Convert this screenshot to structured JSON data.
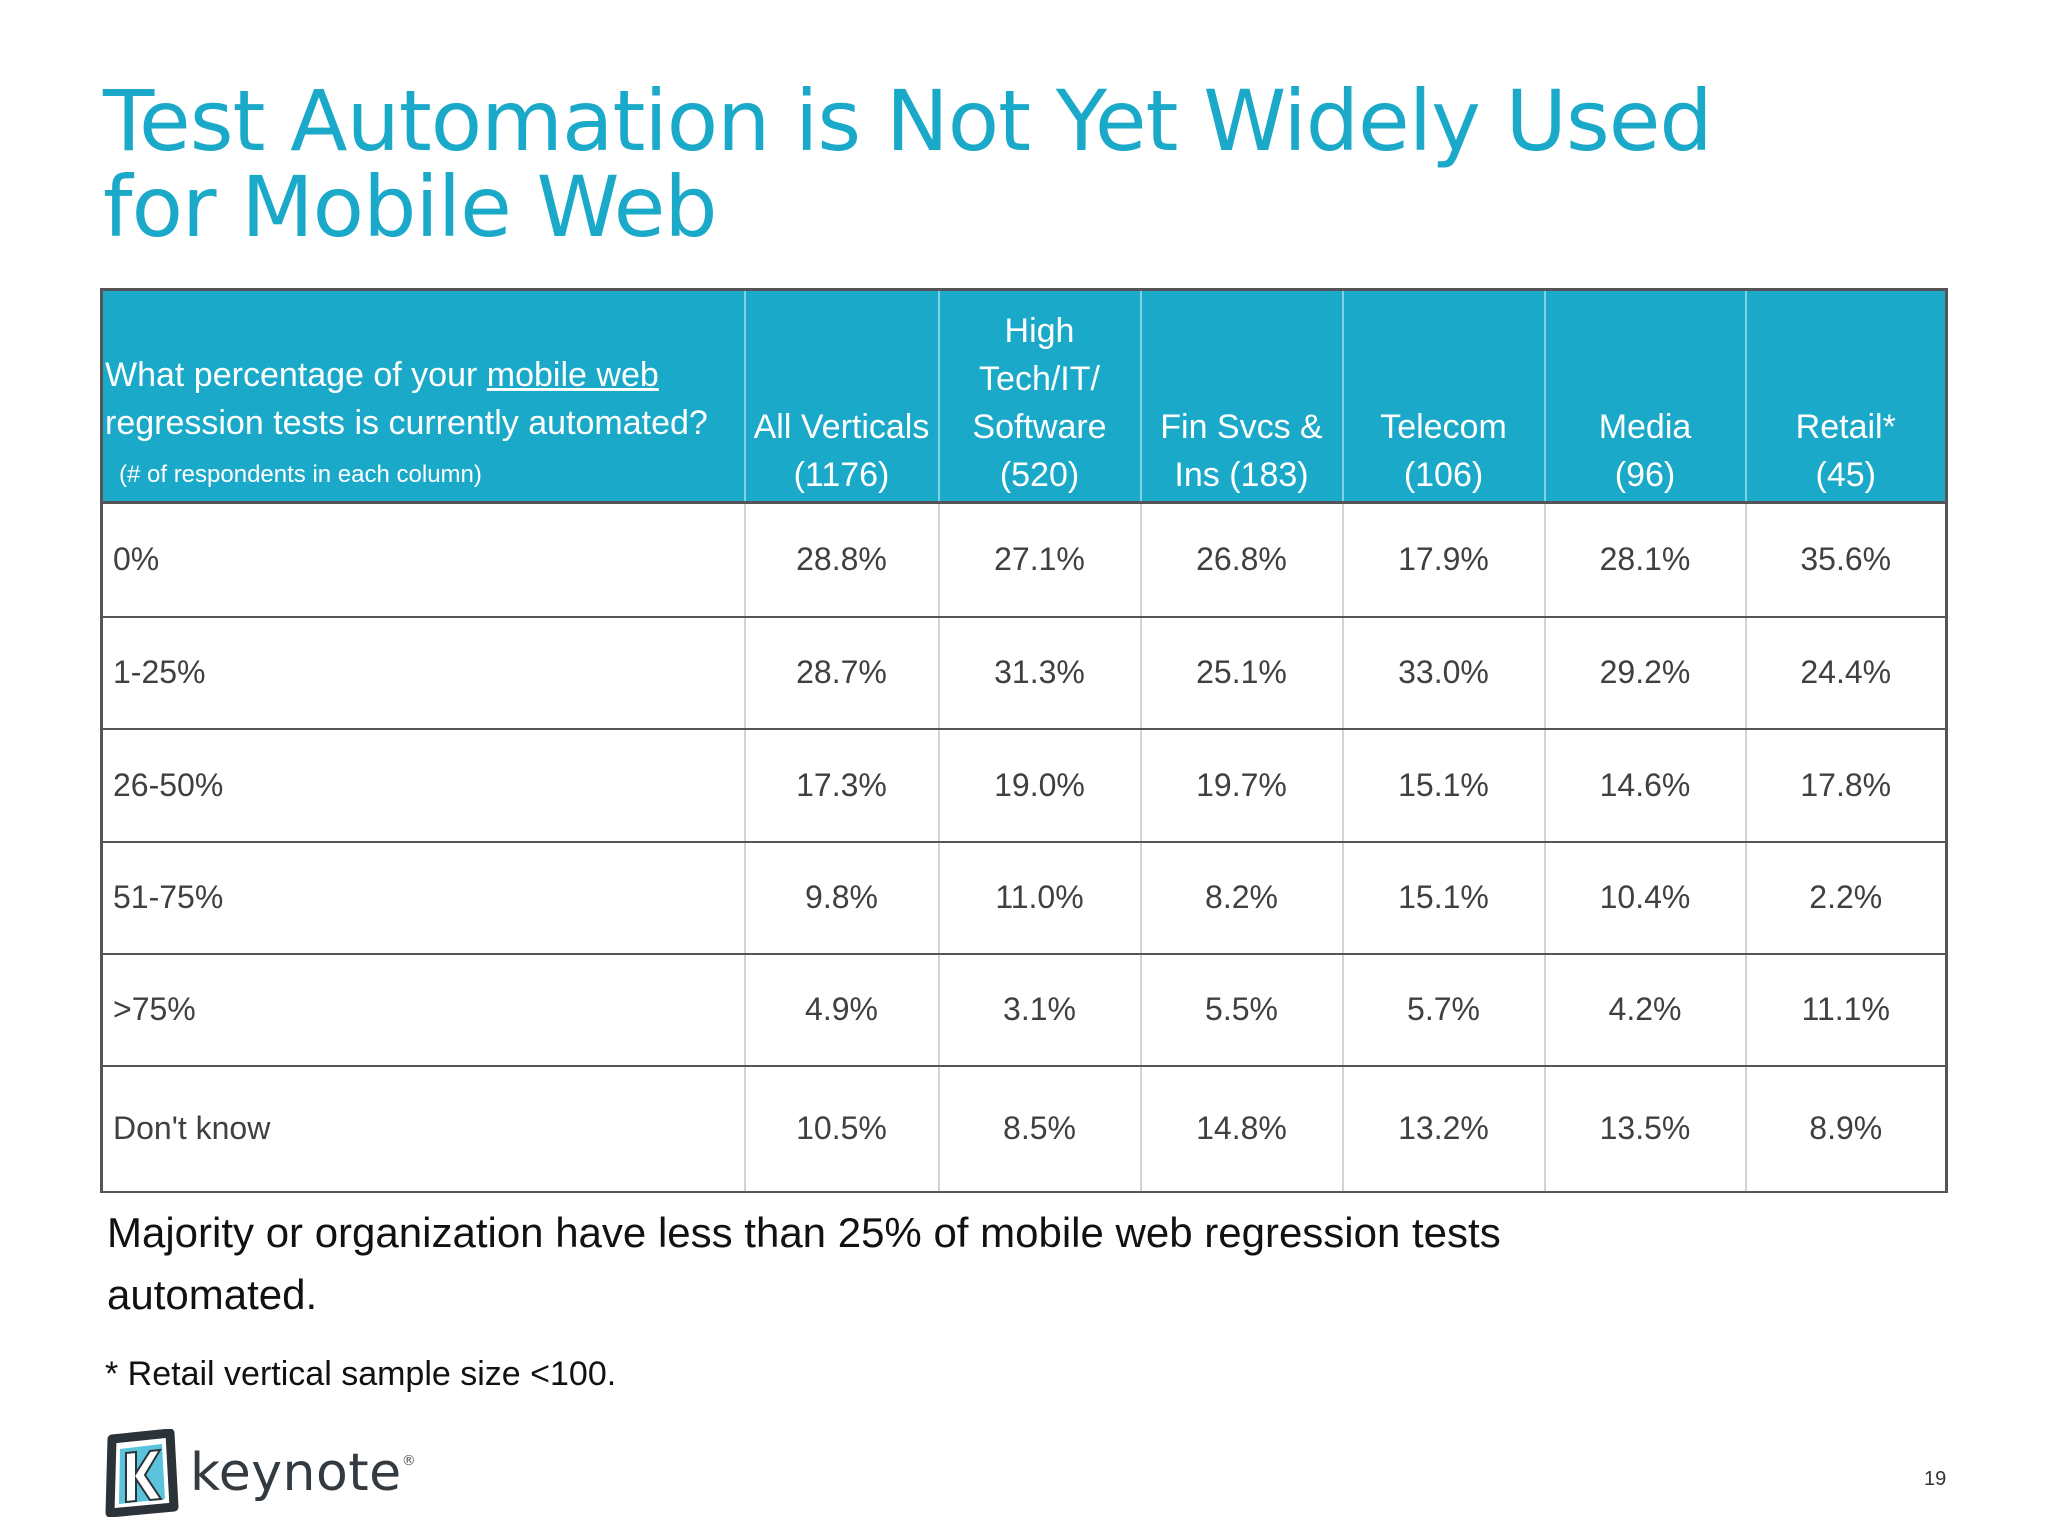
{
  "slide": {
    "title": "Test Automation is Not Yet Widely Used for Mobile Web",
    "summary": "Majority or organization have less than 25% of mobile web regression tests automated.",
    "footnote": "* Retail vertical sample size <100.",
    "page_number": "19"
  },
  "table": {
    "question": {
      "part1": "What percentage of your ",
      "link": "mobile web",
      "part2": " regression tests is currently automated?",
      "note": "(# of respondents in each column)"
    },
    "columns": [
      {
        "lines": [
          "All Verticals",
          "(1176)"
        ]
      },
      {
        "lines": [
          "High",
          "Tech/IT/",
          "Software",
          "(520)"
        ]
      },
      {
        "lines": [
          "Fin Svcs &",
          "Ins (183)"
        ]
      },
      {
        "lines": [
          "Telecom",
          "(106)"
        ]
      },
      {
        "lines": [
          "Media",
          "(96)"
        ]
      },
      {
        "lines": [
          "Retail*",
          "(45)"
        ]
      }
    ],
    "rows": [
      {
        "label": "0%",
        "values": [
          "28.8%",
          "27.1%",
          "26.8%",
          "17.9%",
          "28.1%",
          "35.6%"
        ]
      },
      {
        "label": "1-25%",
        "values": [
          "28.7%",
          "31.3%",
          "25.1%",
          "33.0%",
          "29.2%",
          "24.4%"
        ]
      },
      {
        "label": "26-50%",
        "values": [
          "17.3%",
          "19.0%",
          "19.7%",
          "15.1%",
          "14.6%",
          "17.8%"
        ]
      },
      {
        "label": "51-75%",
        "values": [
          "9.8%",
          "11.0%",
          "8.2%",
          "15.1%",
          "10.4%",
          "2.2%"
        ]
      },
      {
        "label": ">75%",
        "values": [
          "4.9%",
          "3.1%",
          "5.5%",
          "5.7%",
          "4.2%",
          "11.1%"
        ]
      },
      {
        "label": "Don't know",
        "values": [
          "10.5%",
          "8.5%",
          "14.8%",
          "13.2%",
          "13.5%",
          "8.9%"
        ]
      }
    ]
  },
  "logo": {
    "text": "keynote",
    "icon": "keynote-k-logo-icon"
  },
  "colors": {
    "accent": "#1aa9c8",
    "header_text": "#ffffff",
    "body_text": "#404040"
  }
}
